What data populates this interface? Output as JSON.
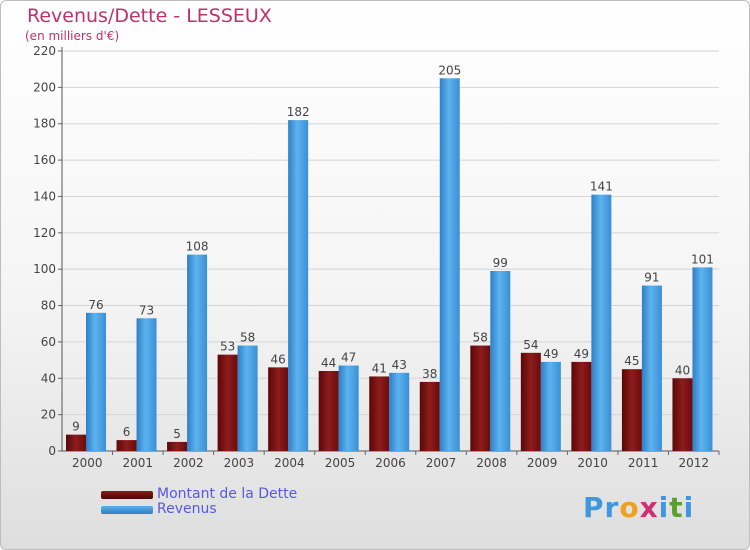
{
  "chart_data": {
    "type": "bar",
    "title": "Revenus/Dette - LESSEUX",
    "subtitle": "(en milliers d'€)",
    "categories": [
      "2000",
      "2001",
      "2002",
      "2003",
      "2004",
      "2005",
      "2006",
      "2007",
      "2008",
      "2009",
      "2010",
      "2011",
      "2012"
    ],
    "series": [
      {
        "name": "Montant de la Dette",
        "color": "#7a1414",
        "values": [
          9,
          6,
          5,
          53,
          46,
          44,
          41,
          38,
          58,
          54,
          49,
          45,
          40
        ]
      },
      {
        "name": "Revenus",
        "color": "#3f97de",
        "values": [
          76,
          73,
          108,
          58,
          182,
          47,
          43,
          205,
          99,
          49,
          141,
          91,
          101
        ]
      }
    ],
    "ylim": [
      0,
      220
    ],
    "yticks": [
      0,
      20,
      40,
      60,
      80,
      100,
      120,
      140,
      160,
      180,
      200,
      220
    ],
    "grid": true,
    "legend": "bottom-left"
  },
  "logo": {
    "text": "Proxiti",
    "letters": [
      "P",
      "r",
      "o",
      "x",
      "i",
      "t",
      "i"
    ],
    "colors": [
      "#3f97de",
      "#3f97de",
      "#f0a020",
      "#d03070",
      "#3f97de",
      "#5aa02c",
      "#3f97de"
    ]
  }
}
